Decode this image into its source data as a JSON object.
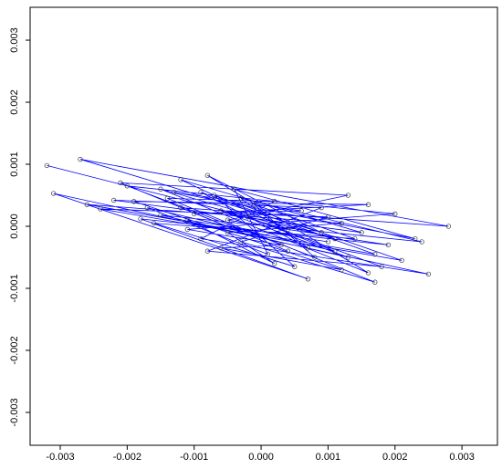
{
  "chart_data": {
    "type": "line",
    "x": [
      -0.0032,
      0.0011,
      -0.0015,
      0.0016,
      -0.0008,
      0.0009,
      -0.0027,
      0.0028,
      -0.0012,
      0.0004,
      -0.0021,
      0.0013,
      -0.0005,
      0.0019,
      -0.0018,
      0.0007,
      -0.0031,
      0.0025,
      -0.0009,
      0.0002,
      -0.0014,
      0.0017,
      -0.0003,
      0.001,
      -0.0024,
      0.0021,
      -0.0007,
      0.0005,
      -0.0016,
      0.0014,
      -0.0001,
      0.0008,
      -0.002,
      0.002,
      -0.0011,
      0.0003,
      -0.0006,
      0.0012,
      -0.0019,
      0.0016,
      -0.001,
      0.0006,
      -0.0013,
      0.0023,
      -0.0004,
      0.0001,
      -0.0017,
      0.0011,
      -0.0002,
      0.0018,
      -0.0008,
      0.0009,
      -0.0022,
      0.0015,
      -0.0012,
      0.0004,
      -0.0006,
      0.0013,
      -0.0015,
      0.0024,
      -0.0003,
      0.0007,
      -0.0009,
      0.0017,
      -0.0026,
      0.0012,
      -0.0005,
      0.0002,
      -0.0011,
      0.001
    ],
    "series": [
      {
        "color": "#0000ff",
        "values": [
          0.00098,
          -0.0002,
          0.0006,
          -0.00075,
          0.00082,
          -0.0001,
          0.00108,
          0.0,
          0.0003,
          -0.0004,
          0.0007,
          0.0005,
          0.0001,
          -0.0003,
          0.00012,
          -0.00085,
          0.00053,
          -0.00077,
          -0.0002,
          0.0004,
          0.00045,
          -0.0009,
          -0.00025,
          0.00015,
          0.00028,
          -0.00055,
          0.0005,
          -0.00065,
          5e-05,
          -0.0002,
          0.00035,
          -0.0005,
          0.00065,
          0.0002,
          -5e-05,
          -0.0003,
          -0.00035,
          -0.0007,
          0.0004,
          0.00035,
          0.0002,
          0.00025,
          0.00055,
          -0.0002,
          0.0006,
          -0.00045,
          0.0003,
          -0.0004,
          0.00015,
          -0.00065,
          -0.0004,
          0.0003,
          0.00042,
          -0.0001,
          0.00075,
          -5e-05,
          0.00025,
          -0.0005,
          0.00018,
          -0.00025,
          0.00045,
          -0.00035,
          0.00055,
          -0.00045,
          0.00035,
          5e-05,
          -0.0001,
          -0.0006,
          0.0001,
          -0.00025
        ]
      }
    ],
    "xlim": [
      -0.00345,
      0.00353
    ],
    "ylim": [
      -0.00353,
      0.00353
    ],
    "xticks": [
      -0.003,
      -0.002,
      -0.001,
      {
        "value": 0,
        "label": "0.000"
      },
      0.001,
      0.002,
      0.003
    ],
    "yticks": [
      -0.003,
      -0.002,
      -0.001,
      {
        "value": 0,
        "label": "0.000"
      },
      0.001,
      0.002,
      0.003
    ]
  }
}
